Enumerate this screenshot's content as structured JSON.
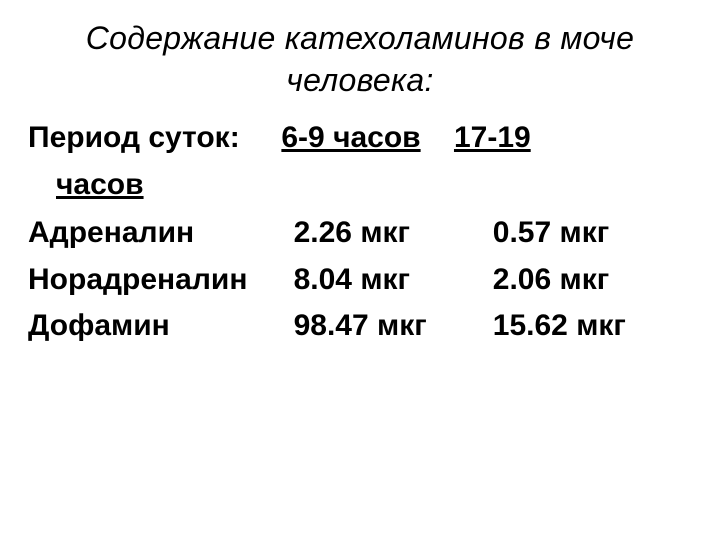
{
  "title": "Содержание катехоламинов в моче человека:",
  "header": {
    "label": "Период суток:",
    "col1": "6-9 часов",
    "col2": "17-19 часов",
    "col2_part1": "17-19",
    "col2_part2": "часов"
  },
  "rows": [
    {
      "name": "Адреналин",
      "v1": "2.26 мкг",
      "v2": "0.57 мкг"
    },
    {
      "name": "Норадреналин",
      "v1": "8.04 мкг",
      "v2": "2.06 мкг"
    },
    {
      "name": "Дофамин",
      "v1": "98.47 мкг",
      "v2": "15.62 мкг"
    }
  ],
  "styling": {
    "type": "table",
    "background_color": "#ffffff",
    "text_color": "#000000",
    "title_fontsize": 32,
    "title_style": "italic",
    "body_fontsize": 30,
    "body_weight": "bold",
    "col_widths_pct": [
      40,
      30,
      30
    ]
  }
}
